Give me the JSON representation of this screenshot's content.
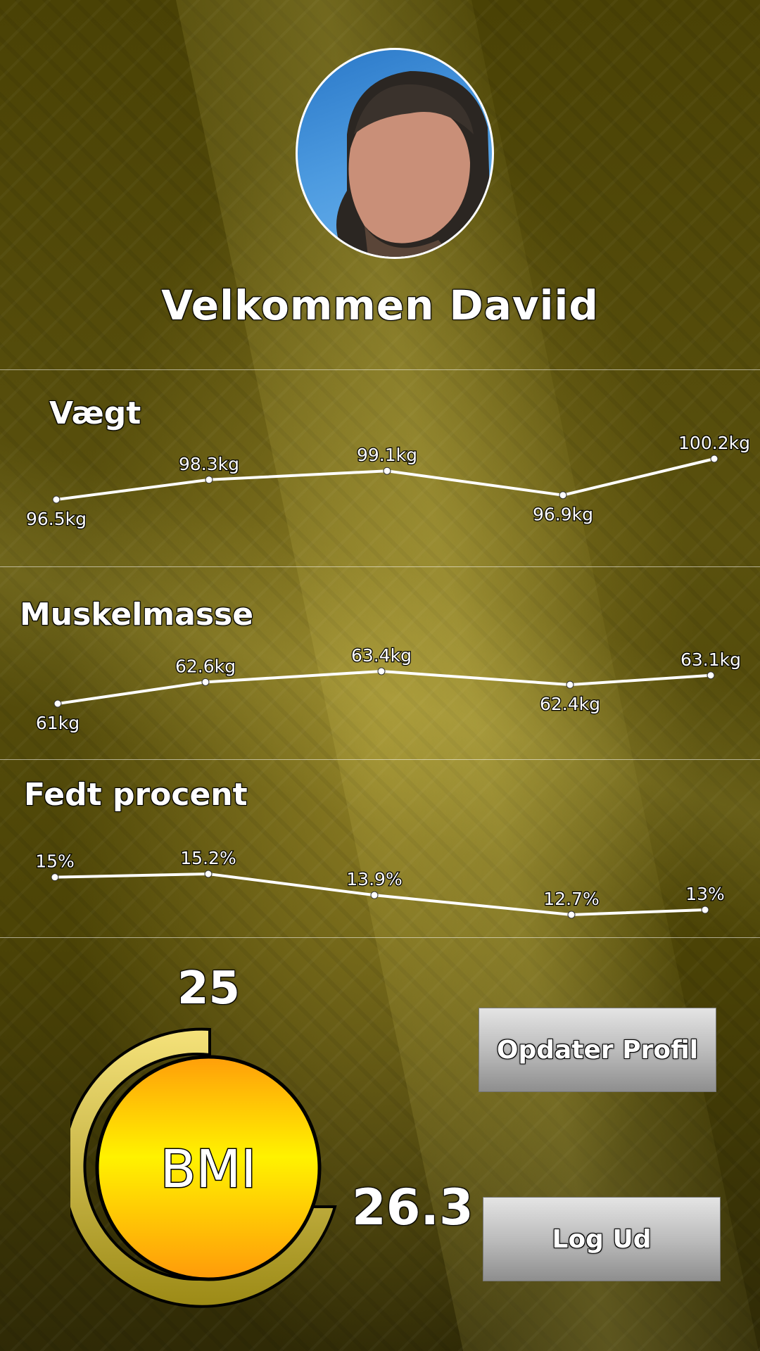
{
  "user": {
    "welcome_text": "Velkommen Daviid"
  },
  "sections": {
    "weight": {
      "title": "Vægt",
      "labels": [
        "96.5kg",
        "98.3kg",
        "99.1kg",
        "96.9kg",
        "100.2kg"
      ]
    },
    "muscle": {
      "title": "Muskelmasse",
      "labels": [
        "61kg",
        "62.6kg",
        "63.4kg",
        "62.4kg",
        "63.1kg"
      ]
    },
    "fat": {
      "title": "Fedt procent",
      "labels": [
        "15%",
        "15.2%",
        "13.9%",
        "12.7%",
        "13%"
      ]
    }
  },
  "chart_data": [
    {
      "type": "line",
      "values": [
        96.5,
        98.3,
        99.1,
        96.9,
        100.2
      ]
    },
    {
      "type": "line",
      "values": [
        61,
        62.6,
        63.4,
        62.4,
        63.1
      ]
    },
    {
      "type": "line",
      "values": [
        15,
        15.2,
        13.9,
        12.7,
        13
      ]
    }
  ],
  "bmi": {
    "label": "BMI",
    "reference": "25",
    "value": "26.3",
    "colors": {
      "outer_ring": "#c9b230",
      "inner_top": "#ff9e0a",
      "inner_mid": "#fff200"
    }
  },
  "buttons": {
    "update_profile": "Opdater Profil",
    "logout": "Log Ud"
  }
}
